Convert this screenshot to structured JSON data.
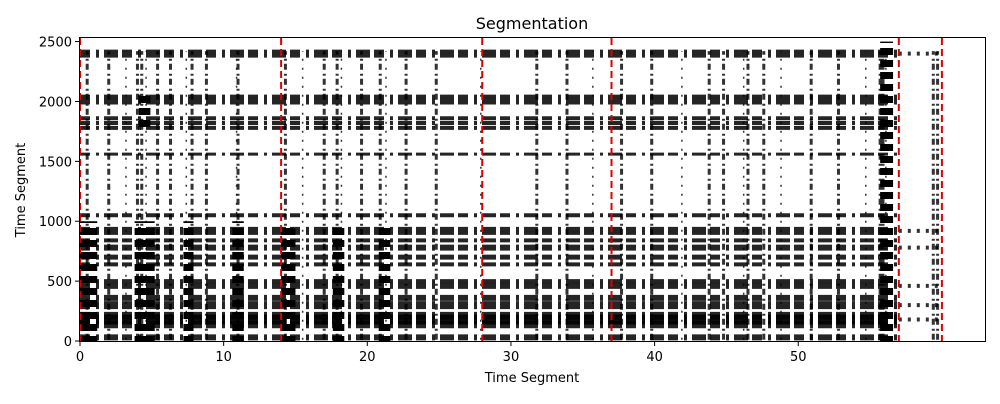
{
  "chart_data": {
    "type": "heatmap",
    "title": "Segmentation",
    "xlabel": "Time Segment",
    "ylabel": "Time Segment",
    "xlim": [
      0,
      63
    ],
    "ylim": [
      0,
      2530
    ],
    "x_ticks": [
      0,
      10,
      20,
      30,
      40,
      50
    ],
    "y_ticks": [
      0,
      500,
      1000,
      1500,
      2000,
      2500
    ],
    "colormap": "binary (black = active, white = empty)",
    "segment_boundaries": [
      0,
      14,
      28,
      37,
      57,
      60
    ],
    "boundary_color": "#e00000",
    "row_bands": [
      2400,
      2040,
      2000,
      1860,
      1820,
      1780,
      1560,
      1050,
      920,
      840,
      780,
      700,
      640,
      500,
      460,
      360,
      300,
      210,
      180,
      140,
      30
    ],
    "active_columns": [
      0.5,
      2,
      3.2,
      4,
      4.3,
      4.6,
      5.4,
      6.3,
      7.4,
      7.8,
      8.8,
      10.9,
      11,
      14.3,
      15.5,
      17,
      17.9,
      18.2,
      19.6,
      20.9,
      21.3,
      22.7,
      24.8,
      27.9,
      31.8,
      33.9,
      35.7,
      37.7,
      39.8,
      41.9,
      43.8,
      44.8,
      46.2,
      46.5,
      47.6,
      48.8,
      50.9,
      52.8,
      54.7,
      55.7,
      55.9,
      56.1,
      59.4,
      59.7
    ]
  }
}
